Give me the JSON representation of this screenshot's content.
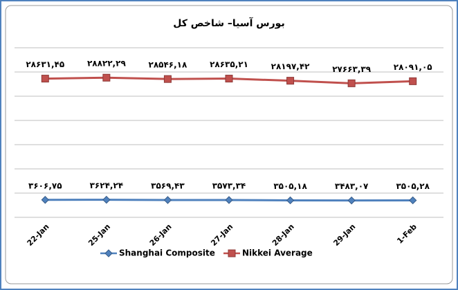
{
  "chart_data": {
    "type": "line",
    "title": "بورس آسیا– شاخص کل",
    "categories": [
      "22-Jan",
      "25-Jan",
      "26-Jan",
      "27-Jan",
      "28-Jan",
      "29-Jan",
      "1-Feb"
    ],
    "series": [
      {
        "name": "Shanghai Composite",
        "color": "#4f81bd",
        "marker": "diamond",
        "values": [
          3606.75,
          3624.24,
          3569.43,
          3573.34,
          3505.18,
          3483.07,
          3505.28
        ],
        "value_labels": [
          "۳۶۰۶,۷۵",
          "۳۶۲۴,۲۴",
          "۳۵۶۹,۴۳",
          "۳۵۷۳,۳۴",
          "۳۵۰۵,۱۸",
          "۳۴۸۳,۰۷",
          "۳۵۰۵,۲۸"
        ]
      },
      {
        "name": "Nikkei Average",
        "color": "#c0504d",
        "marker": "square",
        "values": [
          28631.45,
          28822.29,
          28546.18,
          28635.21,
          28197.42,
          27663.39,
          28091.05
        ],
        "value_labels": [
          "۲۸۶۳۱,۴۵",
          "۲۸۸۲۲,۲۹",
          "۲۸۵۴۶,۱۸",
          "۲۸۶۳۵,۲۱",
          "۲۸۱۹۷,۴۲",
          "۲۷۶۶۳,۳۹",
          "۲۸۰۹۱,۰۵"
        ]
      }
    ],
    "ylim": [
      0,
      35000
    ],
    "yticks": [
      0,
      5000,
      10000,
      15000,
      20000,
      25000,
      30000,
      35000
    ],
    "grid": true,
    "legend": "bottom"
  }
}
